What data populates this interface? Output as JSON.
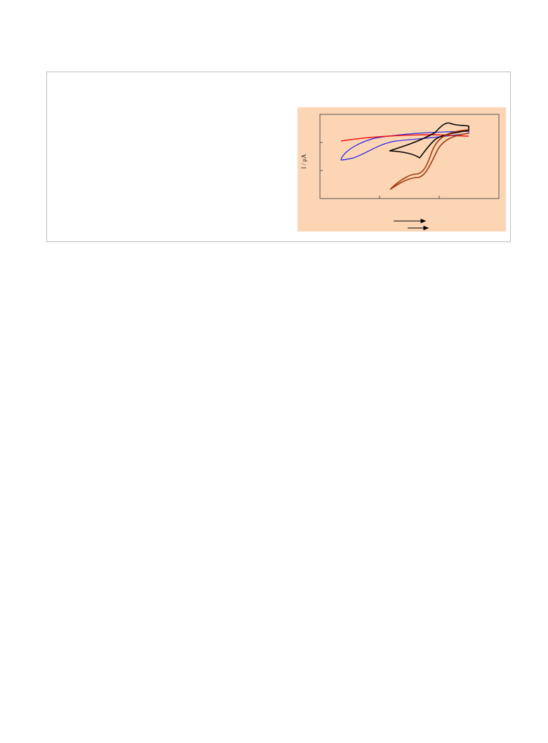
{
  "figure": {
    "y_axis_label": "I / μA"
  }
}
